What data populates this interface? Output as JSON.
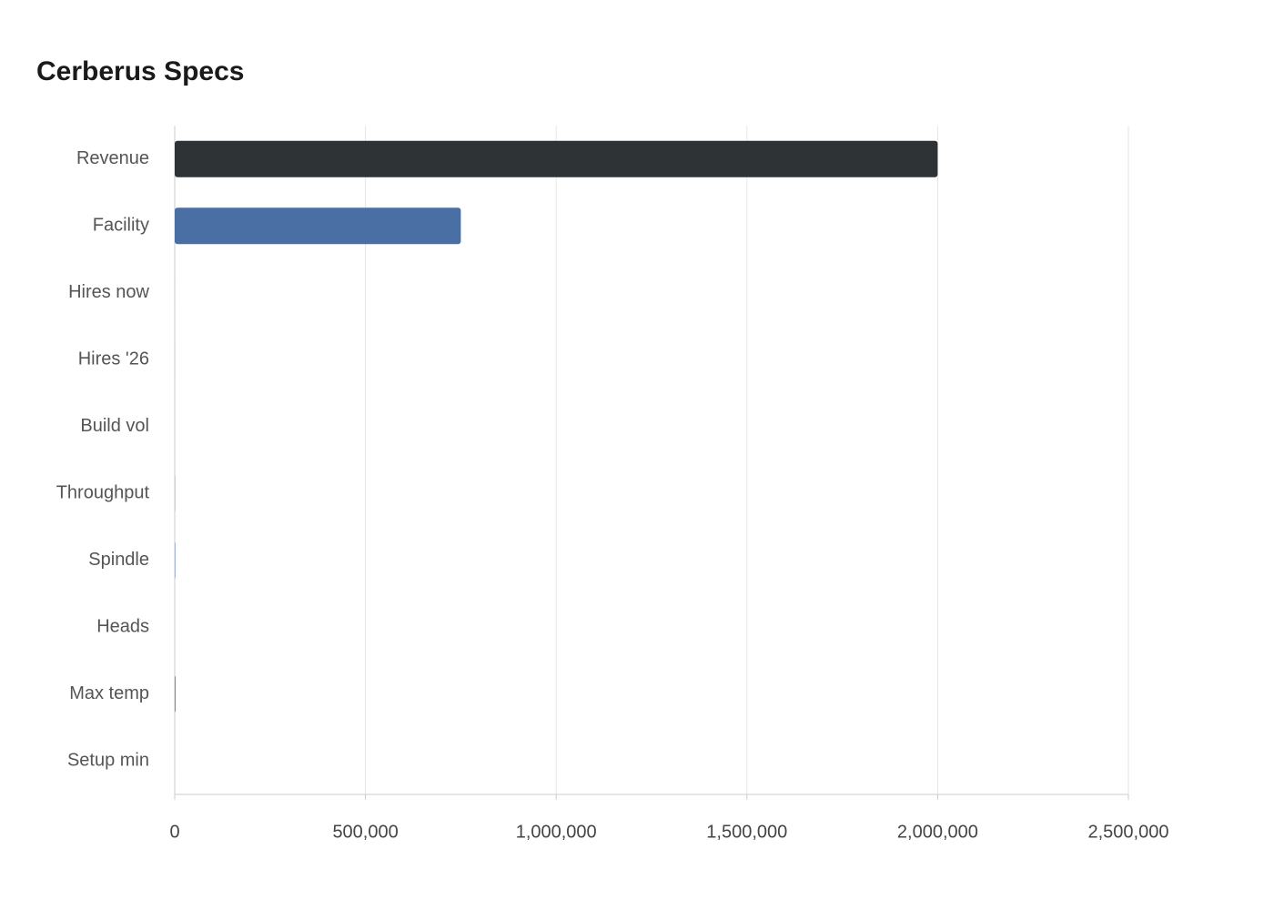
{
  "chart_data": {
    "type": "bar",
    "orientation": "horizontal",
    "title": "Cerberus Specs",
    "categories": [
      "Revenue",
      "Facility",
      "Hires now",
      "Hires '26",
      "Build vol",
      "Throughput",
      "Spindle",
      "Heads",
      "Max temp",
      "Setup min"
    ],
    "values": [
      2000000,
      750000,
      45,
      60,
      12,
      350,
      1200,
      5,
      1400,
      30
    ],
    "colors": [
      "#2e3436",
      "#4a6fa5",
      "#4a6fa5",
      "#2e3436",
      "#c8ced6",
      "#2e3436",
      "#4a6fa5",
      "#4a6fa5",
      "#2e3436",
      "#4a6fa5"
    ],
    "xlim": [
      0,
      2500000
    ],
    "xticks": [
      0,
      {
        "value": 500000,
        "label": "500,000"
      },
      {
        "value": 1000000,
        "label": "1,000,000"
      },
      {
        "value": 1500000,
        "label": "1,500,000"
      },
      {
        "value": 2000000,
        "label": "2,000,000"
      },
      {
        "value": 2500000,
        "label": "2,500,000"
      }
    ],
    "grid": true
  }
}
